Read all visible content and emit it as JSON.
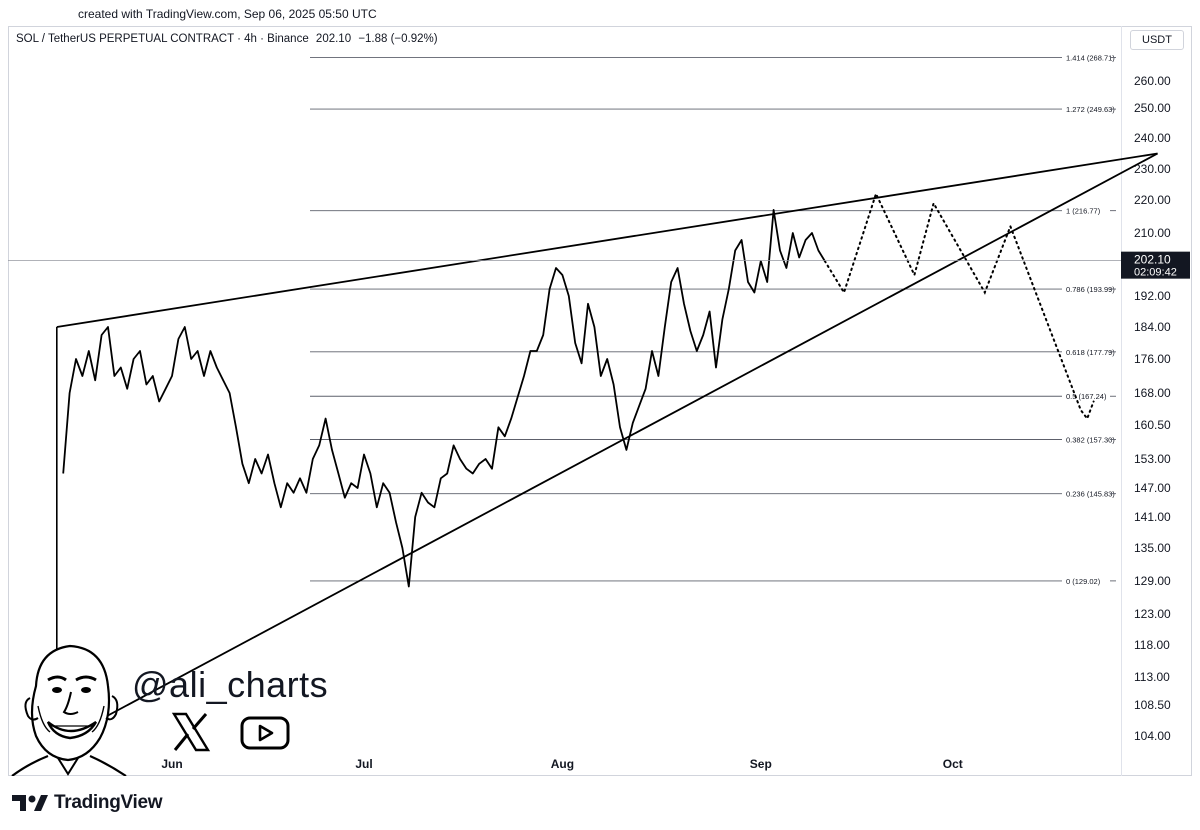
{
  "credit": "created with TradingView.com, Sep 06, 2025 05:50 UTC",
  "header": {
    "symbol": "SOL / TetherUS PERPETUAL CONTRACT · 4h · Binance",
    "price": "202.10",
    "change": "−1.88 (−0.92%)"
  },
  "currency_button": "USDT",
  "brand": {
    "name": "TradingView"
  },
  "watermark": {
    "handle": "@ali_charts",
    "icons": [
      "x-logo-icon",
      "youtube-icon",
      "avatar-caricature-icon"
    ]
  },
  "chart_data": {
    "type": "line",
    "y_ticks": [
      "260.00",
      "250.00",
      "240.00",
      "230.00",
      "220.00",
      "210.00",
      "192.00",
      "184.00",
      "176.00",
      "168.00",
      "160.50",
      "153.00",
      "147.00",
      "141.00",
      "135.00",
      "129.00",
      "123.00",
      "118.00",
      "113.00",
      "108.50",
      "104.00"
    ],
    "x_ticks": [
      "Jun",
      "Jul",
      "Aug",
      "Sep",
      "Oct"
    ],
    "last_price": {
      "value": "202.10",
      "countdown": "02:09:42"
    },
    "fib_levels": [
      {
        "label": "1.414 (268.71)",
        "value": 268.71
      },
      {
        "label": "1.272 (249.63)",
        "value": 249.63
      },
      {
        "label": "1 (216.77)",
        "value": 216.77
      },
      {
        "label": "0.786 (193.99)",
        "value": 193.99
      },
      {
        "label": "0.618 (177.79)",
        "value": 177.79
      },
      {
        "label": "0.5 (167.24)",
        "value": 167.24
      },
      {
        "label": "0.382 (157.30)",
        "value": 157.3
      },
      {
        "label": "0.236 (145.83)",
        "value": 145.83
      },
      {
        "label": "0 (129.02)",
        "value": 129.02
      }
    ],
    "series": [
      {
        "values": [
          [
            "2025-05-15",
            150
          ],
          [
            "2025-05-16",
            168
          ],
          [
            "2025-05-17",
            176
          ],
          [
            "2025-05-18",
            172
          ],
          [
            "2025-05-19",
            178
          ],
          [
            "2025-05-20",
            171
          ],
          [
            "2025-05-21",
            182
          ],
          [
            "2025-05-22",
            184
          ],
          [
            "2025-05-23",
            172
          ],
          [
            "2025-05-24",
            174
          ],
          [
            "2025-05-25",
            169
          ],
          [
            "2025-05-26",
            176
          ],
          [
            "2025-05-27",
            178
          ],
          [
            "2025-05-28",
            170
          ],
          [
            "2025-05-29",
            172
          ],
          [
            "2025-05-30",
            166
          ],
          [
            "2025-05-31",
            169
          ],
          [
            "2025-06-01",
            172
          ],
          [
            "2025-06-02",
            181
          ],
          [
            "2025-06-03",
            184
          ],
          [
            "2025-06-04",
            176
          ],
          [
            "2025-06-05",
            178
          ],
          [
            "2025-06-06",
            172
          ],
          [
            "2025-06-07",
            178
          ],
          [
            "2025-06-08",
            174
          ],
          [
            "2025-06-09",
            171
          ],
          [
            "2025-06-10",
            168
          ],
          [
            "2025-06-11",
            160
          ],
          [
            "2025-06-12",
            152
          ],
          [
            "2025-06-13",
            148
          ],
          [
            "2025-06-14",
            153
          ],
          [
            "2025-06-15",
            150
          ],
          [
            "2025-06-16",
            154
          ],
          [
            "2025-06-17",
            148
          ],
          [
            "2025-06-18",
            143
          ],
          [
            "2025-06-19",
            148
          ],
          [
            "2025-06-20",
            146
          ],
          [
            "2025-06-21",
            149
          ],
          [
            "2025-06-22",
            146
          ],
          [
            "2025-06-23",
            153
          ],
          [
            "2025-06-24",
            156
          ],
          [
            "2025-06-25",
            162
          ],
          [
            "2025-06-26",
            155
          ],
          [
            "2025-06-27",
            150
          ],
          [
            "2025-06-28",
            145
          ],
          [
            "2025-06-29",
            148
          ],
          [
            "2025-06-30",
            147
          ],
          [
            "2025-07-01",
            154
          ],
          [
            "2025-07-02",
            150
          ],
          [
            "2025-07-03",
            143
          ],
          [
            "2025-07-04",
            148
          ],
          [
            "2025-07-05",
            146
          ],
          [
            "2025-07-06",
            140
          ],
          [
            "2025-07-07",
            135
          ],
          [
            "2025-07-08",
            128
          ],
          [
            "2025-07-09",
            141
          ],
          [
            "2025-07-10",
            146
          ],
          [
            "2025-07-11",
            144
          ],
          [
            "2025-07-12",
            143
          ],
          [
            "2025-07-13",
            149
          ],
          [
            "2025-07-14",
            150
          ],
          [
            "2025-07-15",
            156
          ],
          [
            "2025-07-16",
            153
          ],
          [
            "2025-07-17",
            151
          ],
          [
            "2025-07-18",
            150
          ],
          [
            "2025-07-19",
            152
          ],
          [
            "2025-07-20",
            153
          ],
          [
            "2025-07-21",
            151
          ],
          [
            "2025-07-22",
            160
          ],
          [
            "2025-07-23",
            158
          ],
          [
            "2025-07-24",
            162
          ],
          [
            "2025-07-25",
            167
          ],
          [
            "2025-07-26",
            172
          ],
          [
            "2025-07-27",
            178
          ],
          [
            "2025-07-28",
            178
          ],
          [
            "2025-07-29",
            182
          ],
          [
            "2025-07-30",
            194
          ],
          [
            "2025-07-31",
            200
          ],
          [
            "2025-08-01",
            198
          ],
          [
            "2025-08-02",
            192
          ],
          [
            "2025-08-03",
            180
          ],
          [
            "2025-08-04",
            175
          ],
          [
            "2025-08-05",
            190
          ],
          [
            "2025-08-06",
            184
          ],
          [
            "2025-08-07",
            172
          ],
          [
            "2025-08-08",
            176
          ],
          [
            "2025-08-09",
            170
          ],
          [
            "2025-08-10",
            160
          ],
          [
            "2025-08-11",
            155
          ],
          [
            "2025-08-12",
            161
          ],
          [
            "2025-08-13",
            165
          ],
          [
            "2025-08-14",
            169
          ],
          [
            "2025-08-15",
            178
          ],
          [
            "2025-08-16",
            172
          ],
          [
            "2025-08-17",
            184
          ],
          [
            "2025-08-18",
            196
          ],
          [
            "2025-08-19",
            200
          ],
          [
            "2025-08-20",
            190
          ],
          [
            "2025-08-21",
            183
          ],
          [
            "2025-08-22",
            178
          ],
          [
            "2025-08-23",
            182
          ],
          [
            "2025-08-24",
            188
          ],
          [
            "2025-08-25",
            174
          ],
          [
            "2025-08-26",
            186
          ],
          [
            "2025-08-27",
            194
          ],
          [
            "2025-08-28",
            205
          ],
          [
            "2025-08-29",
            208
          ],
          [
            "2025-08-30",
            196
          ],
          [
            "2025-08-31",
            193
          ],
          [
            "2025-09-01",
            202
          ],
          [
            "2025-09-02",
            196
          ],
          [
            "2025-09-03",
            217
          ],
          [
            "2025-09-04",
            205
          ],
          [
            "2025-09-05",
            200
          ],
          [
            "2025-09-06",
            210
          ],
          [
            "2025-09-07",
            203
          ],
          [
            "2025-09-08",
            208
          ],
          [
            "2025-09-09",
            210
          ],
          [
            "2025-09-10",
            205
          ],
          [
            "2025-09-11",
            202
          ]
        ]
      }
    ],
    "projection": [
      [
        "2025-09-11",
        202
      ],
      [
        "2025-09-14",
        193
      ],
      [
        "2025-09-19",
        222
      ],
      [
        "2025-09-25",
        198
      ],
      [
        "2025-09-28",
        219
      ],
      [
        "2025-10-06",
        193
      ],
      [
        "2025-10-10",
        212
      ],
      [
        "2025-10-21",
        164
      ],
      [
        "2025-10-22",
        162
      ],
      [
        "2025-10-23",
        166
      ]
    ],
    "trendlines": [
      {
        "from": [
          "2025-05-14",
          184
        ],
        "to": [
          "2025-11-02",
          235
        ]
      },
      {
        "from": [
          "2025-05-14",
          103
        ],
        "to": [
          "2025-11-02",
          235
        ]
      }
    ]
  }
}
